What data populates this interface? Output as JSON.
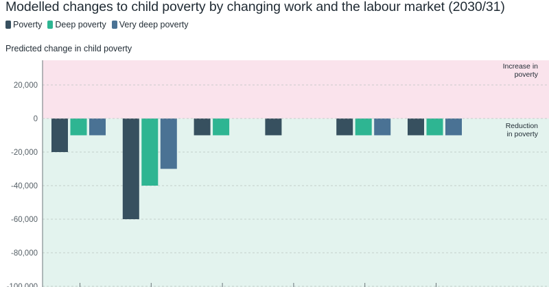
{
  "chart_data": {
    "type": "bar",
    "title": "Modelled changes to child poverty by changing work and the labour market (2030/31)",
    "ylabel": "Predicted change in child poverty",
    "xlabel": "",
    "ylim": [
      -100000,
      35000
    ],
    "yticks": [
      20000,
      0,
      -20000,
      -40000,
      -60000,
      -80000,
      -100000
    ],
    "ytick_labels": [
      "20,000",
      "0",
      "-20,000",
      "-40,000",
      "-60,000",
      "-80,000",
      "-100,000"
    ],
    "legend_position": "top-left",
    "grid": true,
    "series": [
      {
        "name": "Poverty",
        "color": "#37505f",
        "values": [
          -20000,
          -60000,
          -10000,
          -10000,
          -10000,
          -10000
        ]
      },
      {
        "name": "Deep poverty",
        "color": "#2eb592",
        "values": [
          -10000,
          -40000,
          -10000,
          null,
          -10000,
          -10000
        ]
      },
      {
        "name": "Very deep poverty",
        "color": "#4a7294",
        "values": [
          -10000,
          -30000,
          null,
          null,
          -10000,
          -10000
        ]
      }
    ],
    "category_count": 6,
    "annotations": [
      {
        "region": "increase",
        "text_line1": "Increase in",
        "text_line2": "poverty",
        "color": "#fae3ec"
      },
      {
        "region": "reduction",
        "text_line1": "Reduction",
        "text_line2": "in poverty",
        "color": "#e3f3ee"
      }
    ]
  }
}
